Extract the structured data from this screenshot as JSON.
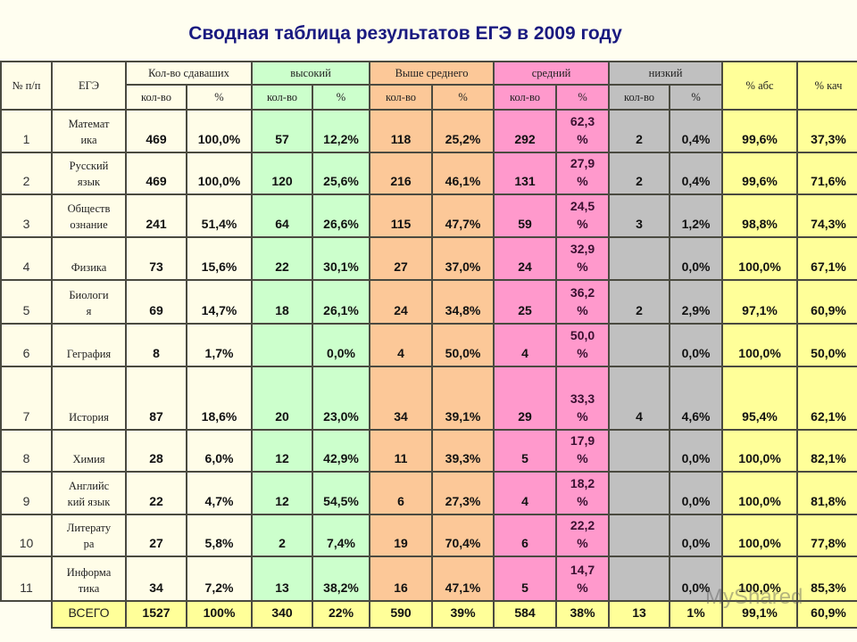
{
  "title": "Сводная таблица результатов ЕГЭ в 2009 году",
  "header": {
    "num": "№ п/п",
    "exam": "ЕГЭ",
    "takers": "Кол-во сдаваших",
    "high": "высокий",
    "above": "Выше среднего",
    "mid": "средний",
    "low": "низкий",
    "abs": "% абс",
    "qual": "% кач",
    "count": "кол-во",
    "pct": "%"
  },
  "colors": {
    "base": "#fffde8",
    "high": "#ccffcc",
    "above": "#fcc898",
    "mid": "#ff99cc",
    "low": "#c0c0c0",
    "summary": "#ffff99",
    "title": "#1a1a80"
  },
  "rows": [
    {
      "idx": "1",
      "subj1": "Математ",
      "subj2": "ика",
      "t": "469",
      "tp": "100,0%",
      "h": "57",
      "hp": "12,2%",
      "a": "118",
      "ap": "25,2%",
      "m": "292",
      "mp1": "62,3",
      "mp2": "%",
      "l": "2",
      "lp": "0,4%",
      "abs": "99,6%",
      "q": "37,3%"
    },
    {
      "idx": "2",
      "subj1": "Русский",
      "subj2": "язык",
      "t": "469",
      "tp": "100,0%",
      "h": "120",
      "hp": "25,6%",
      "a": "216",
      "ap": "46,1%",
      "m": "131",
      "mp1": "27,9",
      "mp2": "%",
      "l": "2",
      "lp": "0,4%",
      "abs": "99,6%",
      "q": "71,6%"
    },
    {
      "idx": "3",
      "subj1": "Обществ",
      "subj2": "ознание",
      "t": "241",
      "tp": "51,4%",
      "h": "64",
      "hp": "26,6%",
      "a": "115",
      "ap": "47,7%",
      "m": "59",
      "mp1": "24,5",
      "mp2": "%",
      "l": "3",
      "lp": "1,2%",
      "abs": "98,8%",
      "q": "74,3%"
    },
    {
      "idx": "4",
      "subj1": "Физика",
      "subj2": "",
      "t": "73",
      "tp": "15,6%",
      "h": "22",
      "hp": "30,1%",
      "a": "27",
      "ap": "37,0%",
      "m": "24",
      "mp1": "32,9",
      "mp2": "%",
      "l": "",
      "lp": "0,0%",
      "abs": "100,0%",
      "q": "67,1%"
    },
    {
      "idx": "5",
      "subj1": "Биологи",
      "subj2": "я",
      "t": "69",
      "tp": "14,7%",
      "h": "18",
      "hp": "26,1%",
      "a": "24",
      "ap": "34,8%",
      "m": "25",
      "mp1": "36,2",
      "mp2": "%",
      "l": "2",
      "lp": "2,9%",
      "abs": "97,1%",
      "q": "60,9%"
    },
    {
      "idx": "6",
      "subj1": "Геграфия",
      "subj2": "",
      "t": "8",
      "tp": "1,7%",
      "h": "",
      "hp": "0,0%",
      "a": "4",
      "ap": "50,0%",
      "m": "4",
      "mp1": "50,0",
      "mp2": "%",
      "l": "",
      "lp": "0,0%",
      "abs": "100,0%",
      "q": "50,0%"
    },
    {
      "idx": "7",
      "subj1": "История",
      "subj2": "",
      "t": "87",
      "tp": "18,6%",
      "h": "20",
      "hp": "23,0%",
      "a": "34",
      "ap": "39,1%",
      "m": "29",
      "mp1": "33,3",
      "mp2": "%",
      "l": "4",
      "lp": "4,6%",
      "abs": "95,4%",
      "q": "62,1%"
    },
    {
      "idx": "8",
      "subj1": "Химия",
      "subj2": "",
      "t": "28",
      "tp": "6,0%",
      "h": "12",
      "hp": "42,9%",
      "a": "11",
      "ap": "39,3%",
      "m": "5",
      "mp1": "17,9",
      "mp2": "%",
      "l": "",
      "lp": "0,0%",
      "abs": "100,0%",
      "q": "82,1%"
    },
    {
      "idx": "9",
      "subj1": "Английс",
      "subj2": "кий язык",
      "t": "22",
      "tp": "4,7%",
      "h": "12",
      "hp": "54,5%",
      "a": "6",
      "ap": "27,3%",
      "m": "4",
      "mp1": "18,2",
      "mp2": "%",
      "l": "",
      "lp": "0,0%",
      "abs": "100,0%",
      "q": "81,8%"
    },
    {
      "idx": "10",
      "subj1": "Литерату",
      "subj2": "ра",
      "t": "27",
      "tp": "5,8%",
      "h": "2",
      "hp": "7,4%",
      "a": "19",
      "ap": "70,4%",
      "m": "6",
      "mp1": "22,2",
      "mp2": "%",
      "l": "",
      "lp": "0,0%",
      "abs": "100,0%",
      "q": "77,8%"
    },
    {
      "idx": "11",
      "subj1": "Информа",
      "subj2": "тика",
      "t": "34",
      "tp": "7,2%",
      "h": "13",
      "hp": "38,2%",
      "a": "16",
      "ap": "47,1%",
      "m": "5",
      "mp1": "14,7",
      "mp2": "%",
      "l": "",
      "lp": "0,0%",
      "abs": "100,0%",
      "q": "85,3%"
    }
  ],
  "total": {
    "label": "ВСЕГО",
    "t": "1527",
    "tp": "100%",
    "h": "340",
    "hp": "22%",
    "a": "590",
    "ap": "39%",
    "m": "584",
    "mp": "38%",
    "l": "13",
    "lp": "1%",
    "abs": "99,1%",
    "q": "60,9%"
  },
  "watermark": "MyShared"
}
